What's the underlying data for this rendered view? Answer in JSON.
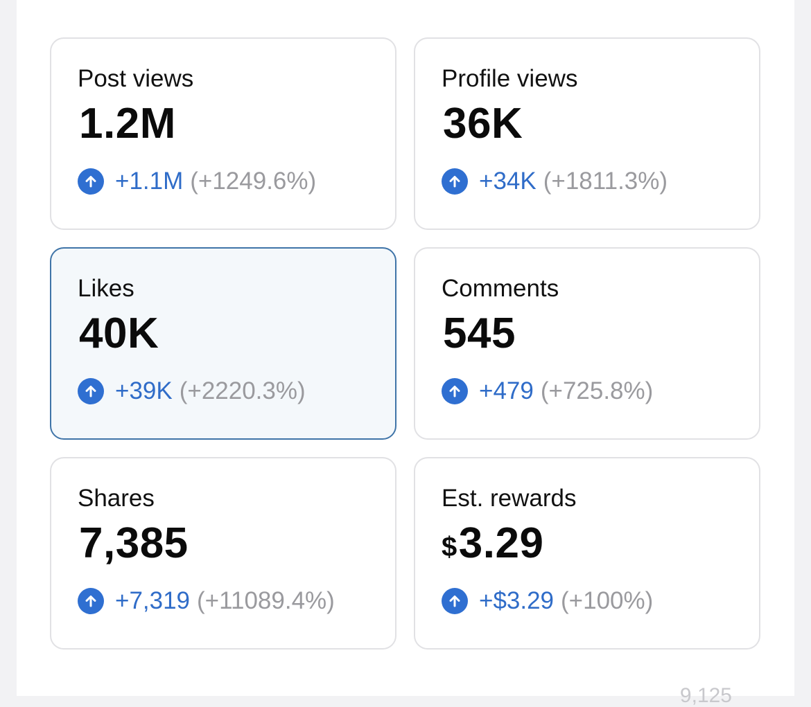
{
  "cards": [
    {
      "label": "Post views",
      "currency": "",
      "value": "1.2M",
      "delta": "+1.1M",
      "percent": "(+1249.6%)",
      "direction_icon": "arrow-up-circle-icon",
      "selected": false
    },
    {
      "label": "Profile views",
      "currency": "",
      "value": "36K",
      "delta": "+34K",
      "percent": "(+1811.3%)",
      "direction_icon": "arrow-up-circle-icon",
      "selected": false
    },
    {
      "label": "Likes",
      "currency": "",
      "value": "40K",
      "delta": "+39K",
      "percent": "(+2220.3%)",
      "direction_icon": "arrow-up-circle-icon",
      "selected": true
    },
    {
      "label": "Comments",
      "currency": "",
      "value": "545",
      "delta": "+479",
      "percent": "(+725.8%)",
      "direction_icon": "arrow-up-circle-icon",
      "selected": false
    },
    {
      "label": "Shares",
      "currency": "",
      "value": "7,385",
      "delta": "+7,319",
      "percent": "(+11089.4%)",
      "direction_icon": "arrow-up-circle-icon",
      "selected": false
    },
    {
      "label": "Est. rewards",
      "currency": "$",
      "value": "3.29",
      "delta": "+$3.29",
      "percent": "(+100%)",
      "direction_icon": "arrow-up-circle-icon",
      "selected": false
    }
  ],
  "colors": {
    "accent": "#2f6fd1",
    "delta_text": "#2f6cc8",
    "percent_text": "#9a9a9e",
    "selected_border": "#3f74a8",
    "selected_bg": "#f4f8fb",
    "card_border": "#e1e1e4"
  },
  "footer_hint": "9,125"
}
